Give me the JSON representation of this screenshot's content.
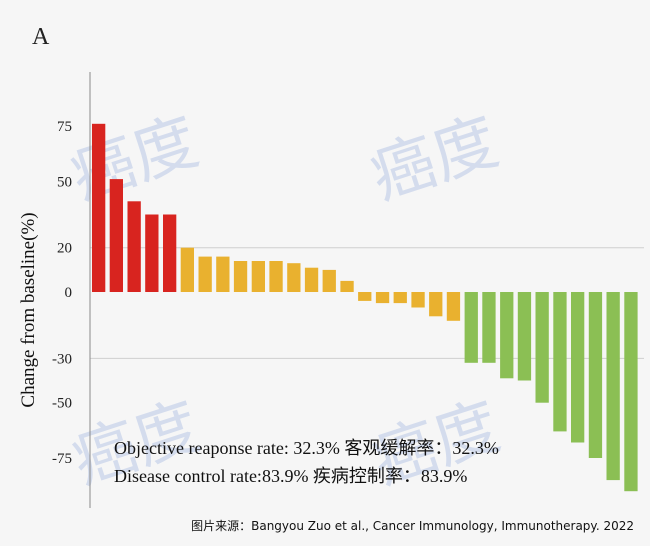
{
  "panel_label": "A",
  "watermark_text": "癌度",
  "source_text": "图片来源：Bangyou Zuo et al., Cancer Immunology, Immunotherapy. 2022",
  "chart_data": {
    "type": "bar",
    "title": "",
    "xlabel": "",
    "ylabel": "Change from baseline(%)",
    "ylim": [
      -90,
      100
    ],
    "yticks": [
      75,
      50,
      20,
      0,
      -30,
      -50,
      -75
    ],
    "gridlines_at": [
      20,
      -30
    ],
    "grid": true,
    "values": [
      76,
      51,
      41,
      35,
      35,
      20,
      16,
      16,
      14,
      14,
      14,
      13,
      11,
      10,
      5,
      -4,
      -5,
      -5,
      -7,
      -11,
      -13,
      -32,
      -32,
      -39,
      -40,
      -50,
      -63,
      -68,
      -75,
      -85,
      -90
    ],
    "colors": {
      "progressive": "#d8241f",
      "stable_positive": "#e9b12f",
      "stable_negative": "#e9b12f",
      "response": "#8bbf54"
    },
    "bar_groups": [
      {
        "from": 0,
        "to": 4,
        "color_key": "progressive"
      },
      {
        "from": 5,
        "to": 14,
        "color_key": "stable_positive"
      },
      {
        "from": 15,
        "to": 20,
        "color_key": "stable_negative"
      },
      {
        "from": 21,
        "to": 30,
        "color_key": "response"
      }
    ],
    "annotations": [
      "Objective reaponse rate: 32.3% 客观缓解率：32.3%",
      "Disease control rate:83.9%  疾病控制率：83.9%"
    ]
  }
}
